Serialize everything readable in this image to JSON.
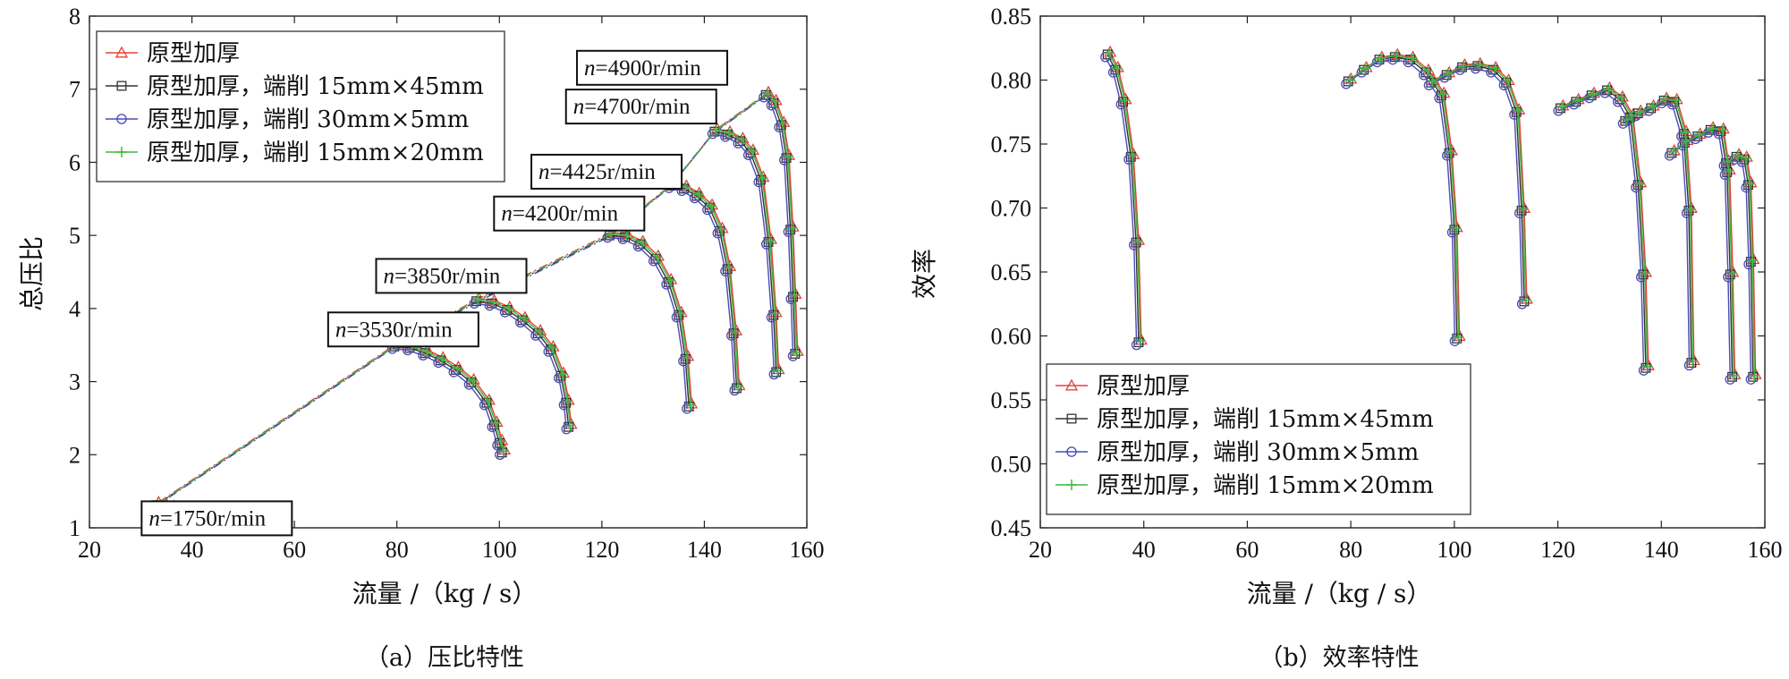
{
  "legend": [
    {
      "name": "原型加厚",
      "color": "#e8403a",
      "marker": "triangle"
    },
    {
      "name": "原型加厚，端削 15mm×45mm",
      "color": "#333333",
      "marker": "square"
    },
    {
      "name": "原型加厚，端削 30mm×5mm",
      "color": "#4a4ab8",
      "marker": "circle"
    },
    {
      "name": "原型加厚，端削 15mm×20mm",
      "color": "#3fb83f",
      "marker": "plus"
    }
  ],
  "chart_data": [
    {
      "type": "line",
      "caption": "（a）压比特性",
      "xlabel": "流量 /（kg / s）",
      "ylabel": "总压比",
      "xlim": [
        20,
        160
      ],
      "ylim": [
        1,
        8
      ],
      "xticks": [
        "20",
        "40",
        "60",
        "80",
        "100",
        "120",
        "140",
        "160"
      ],
      "yticks": [
        "1",
        "2",
        "3",
        "4",
        "5",
        "6",
        "7",
        "8"
      ],
      "legend_position": "top-left",
      "speed_labels": [
        {
          "n": "n",
          "rest": "=1750r/min",
          "x": 33.5,
          "y": 1.35
        },
        {
          "n": "n",
          "rest": "=3530r/min",
          "x": 79.5,
          "y": 3.53
        },
        {
          "n": "n",
          "rest": "=3850r/min",
          "x": 95.5,
          "y": 4.14
        },
        {
          "n": "n",
          "rest": "=4200r/min",
          "x": 122,
          "y": 5.03
        },
        {
          "n": "n",
          "rest": "=4425r/min",
          "x": 134,
          "y": 5.7
        },
        {
          "n": "n",
          "rest": "=4700r/min",
          "x": 142.5,
          "y": 6.42
        },
        {
          "n": "n",
          "rest": "=4900r/min",
          "x": 152.5,
          "y": 6.95
        }
      ],
      "speedlines": [
        {
          "n": 1750,
          "x": [
            33.5,
            35,
            36.5,
            38,
            39.5
          ],
          "y": [
            1.35,
            1.33,
            1.3,
            1.26,
            1.2
          ]
        },
        {
          "n": 3530,
          "x": [
            80,
            83,
            86,
            89,
            92,
            95,
            98,
            99.5,
            100.5,
            101
          ],
          "y": [
            3.52,
            3.5,
            3.43,
            3.33,
            3.2,
            3.03,
            2.75,
            2.45,
            2.2,
            2.07
          ]
        },
        {
          "n": 3850,
          "x": [
            96,
            99,
            102,
            105,
            108,
            110.5,
            112.5,
            113.5,
            114
          ],
          "y": [
            4.14,
            4.11,
            4.02,
            3.88,
            3.7,
            3.48,
            3.12,
            2.75,
            2.42
          ]
        },
        {
          "n": 4200,
          "x": [
            122,
            125,
            128,
            131,
            133.5,
            135.5,
            136.8,
            137.5
          ],
          "y": [
            5.04,
            5.02,
            4.92,
            4.72,
            4.4,
            3.95,
            3.35,
            2.7
          ]
        },
        {
          "n": 4425,
          "x": [
            134,
            136.5,
            139,
            141.5,
            143.5,
            145,
            146.2,
            146.8
          ],
          "y": [
            5.72,
            5.68,
            5.58,
            5.42,
            5.1,
            4.58,
            3.7,
            2.95
          ]
        },
        {
          "n": 4700,
          "x": [
            142.5,
            145,
            147.5,
            149.5,
            151.5,
            153,
            154,
            154.5
          ],
          "y": [
            6.46,
            6.42,
            6.33,
            6.17,
            5.8,
            4.95,
            3.95,
            3.17
          ]
        },
        {
          "n": 4900,
          "x": [
            152.5,
            154,
            155.5,
            156.5,
            157.3,
            157.8,
            158.2
          ],
          "y": [
            6.96,
            6.85,
            6.55,
            6.1,
            5.12,
            4.2,
            3.42
          ]
        }
      ],
      "series_offsets": [
        [
          0,
          0
        ],
        [
          -0.5,
          -0.04
        ],
        [
          -0.9,
          -0.07
        ],
        [
          -0.2,
          -0.02
        ]
      ]
    },
    {
      "type": "line",
      "caption": "（b）效率特性",
      "xlabel": "流量 /（kg / s）",
      "ylabel": "效率",
      "xlim": [
        20,
        160
      ],
      "ylim": [
        0.45,
        0.85
      ],
      "xticks": [
        "20",
        "40",
        "60",
        "80",
        "100",
        "120",
        "140",
        "160"
      ],
      "yticks": [
        "0.45",
        "0.50",
        "0.55",
        "0.60",
        "0.65",
        "0.70",
        "0.75",
        "0.80",
        "0.85"
      ],
      "legend_position": "bottom-left",
      "speedlines": [
        {
          "x": [
            33.5,
            35,
            36.5,
            38,
            39,
            39.5
          ],
          "y": [
            0.822,
            0.81,
            0.785,
            0.742,
            0.675,
            0.597
          ]
        },
        {
          "x": [
            80,
            83,
            86,
            89,
            92,
            95,
            98,
            99.5,
            100.5,
            101
          ],
          "y": [
            0.801,
            0.81,
            0.818,
            0.82,
            0.818,
            0.808,
            0.79,
            0.745,
            0.685,
            0.6
          ]
        },
        {
          "x": [
            96,
            99,
            102,
            105,
            108,
            110.5,
            112.5,
            113.5,
            114
          ],
          "y": [
            0.8,
            0.806,
            0.812,
            0.813,
            0.81,
            0.8,
            0.777,
            0.7,
            0.629
          ]
        },
        {
          "x": [
            121,
            124,
            127,
            130,
            132.5,
            134.5,
            136,
            137,
            137.5
          ],
          "y": [
            0.78,
            0.785,
            0.79,
            0.794,
            0.787,
            0.773,
            0.72,
            0.65,
            0.577
          ]
        },
        {
          "x": [
            133.5,
            136,
            138.5,
            141,
            143,
            144.8,
            145.8,
            146.3
          ],
          "y": [
            0.77,
            0.776,
            0.78,
            0.786,
            0.785,
            0.76,
            0.7,
            0.581
          ]
        },
        {
          "x": [
            142.5,
            145,
            147.5,
            150,
            152,
            153.2,
            153.8,
            154.2
          ],
          "y": [
            0.745,
            0.753,
            0.758,
            0.763,
            0.762,
            0.73,
            0.65,
            0.57
          ]
        },
        {
          "x": [
            153,
            155,
            156.5,
            157.3,
            157.8,
            158.2
          ],
          "y": [
            0.737,
            0.742,
            0.74,
            0.72,
            0.66,
            0.57
          ]
        }
      ],
      "series_offsets": [
        [
          0,
          0
        ],
        [
          -0.5,
          -0.002
        ],
        [
          -0.9,
          -0.004
        ],
        [
          -0.2,
          -0.001
        ]
      ]
    }
  ]
}
